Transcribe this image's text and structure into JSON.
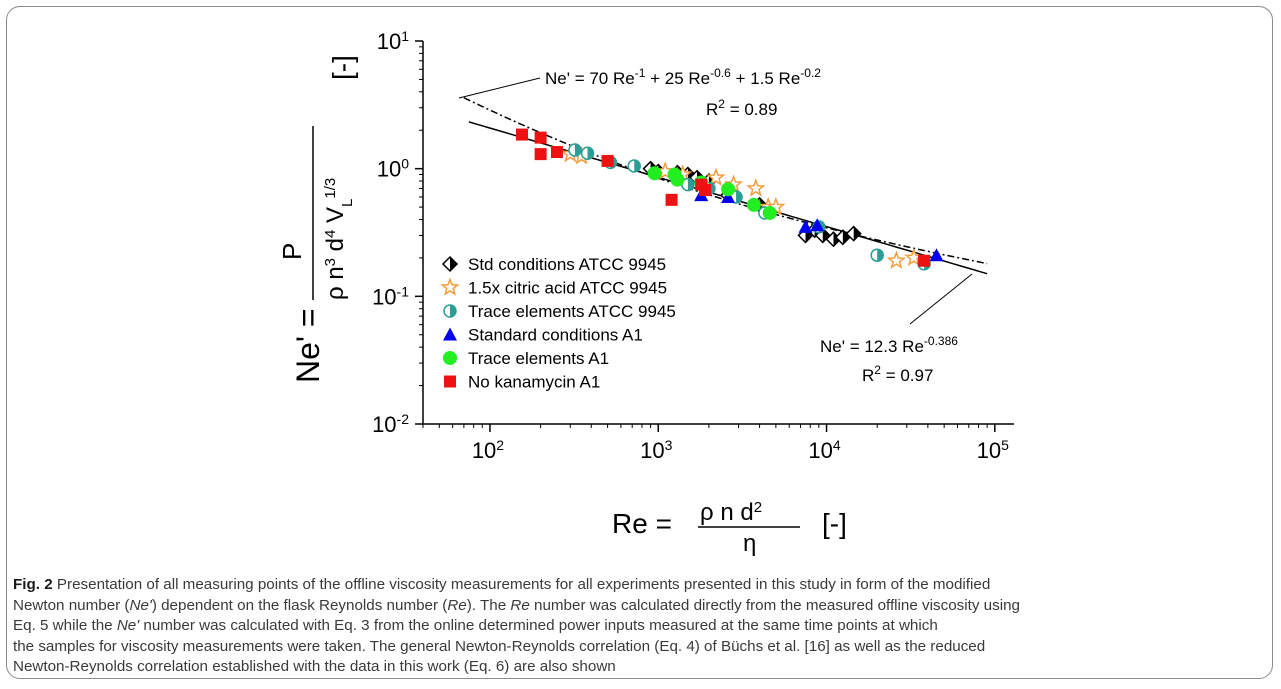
{
  "chart_data": {
    "type": "scatter",
    "x_scale": "log",
    "y_scale": "log",
    "xlim": [
      40,
      130000
    ],
    "ylim": [
      0.01,
      10
    ],
    "x_ticks": [
      {
        "base": "10",
        "exp": "2"
      },
      {
        "base": "10",
        "exp": "3"
      },
      {
        "base": "10",
        "exp": "4"
      },
      {
        "base": "10",
        "exp": "5"
      }
    ],
    "y_ticks": [
      {
        "base": "10",
        "exp": "-2"
      },
      {
        "base": "10",
        "exp": "-1"
      },
      {
        "base": "10",
        "exp": "0"
      },
      {
        "base": "10",
        "exp": "1"
      }
    ],
    "x_ticks_values": [
      100,
      1000,
      10000,
      100000
    ],
    "y_ticks_values": [
      0.01,
      0.1,
      1,
      10
    ],
    "xlabel": {
      "left": "Re =",
      "numerator": "ρ n d",
      "numerator_exp": "2",
      "denominator": "η",
      "unit": "[-]"
    },
    "ylabel": {
      "left": "Ne' =",
      "numerator": "P",
      "denominator": "ρ n",
      "d3": "3",
      "d": " d",
      "d4": "4",
      "v": " V",
      "vsub": "L",
      "vexp": "1/3",
      "unit": "[-]"
    },
    "series": [
      {
        "name": "Std conditions ATCC 9945",
        "marker": "half-diamond",
        "color": "#000000",
        "points": [
          [
            900,
            1.0
          ],
          [
            1000,
            0.95
          ],
          [
            1300,
            0.93
          ],
          [
            1500,
            0.9
          ],
          [
            1700,
            0.85
          ],
          [
            2000,
            0.8
          ],
          [
            2600,
            0.62
          ],
          [
            4000,
            0.52
          ],
          [
            7500,
            0.3
          ],
          [
            8500,
            0.33
          ],
          [
            9500,
            0.3
          ],
          [
            11000,
            0.28
          ],
          [
            12500,
            0.29
          ],
          [
            14500,
            0.31
          ]
        ]
      },
      {
        "name": "1.5x citric acid ATCC 9945",
        "marker": "star",
        "color": "#f39c3c",
        "points": [
          [
            300,
            1.3
          ],
          [
            350,
            1.25
          ],
          [
            1100,
            0.95
          ],
          [
            1400,
            0.9
          ],
          [
            2200,
            0.85
          ],
          [
            2800,
            0.75
          ],
          [
            3800,
            0.7
          ],
          [
            4500,
            0.5
          ],
          [
            5000,
            0.5
          ],
          [
            26000,
            0.19
          ],
          [
            33000,
            0.2
          ]
        ]
      },
      {
        "name": "Trace elements ATCC 9945",
        "marker": "half-circle",
        "color": "#2a9d95",
        "points": [
          [
            320,
            1.4
          ],
          [
            380,
            1.32
          ],
          [
            520,
            1.12
          ],
          [
            720,
            1.05
          ],
          [
            1500,
            0.75
          ],
          [
            2000,
            0.7
          ],
          [
            2900,
            0.6
          ],
          [
            4300,
            0.45
          ],
          [
            9000,
            0.35
          ],
          [
            20000,
            0.21
          ],
          [
            38000,
            0.18
          ]
        ]
      },
      {
        "name": "Standard conditions A1",
        "marker": "triangle",
        "color": "#0000ee",
        "points": [
          [
            1800,
            0.62
          ],
          [
            2600,
            0.6
          ],
          [
            7500,
            0.35
          ],
          [
            8800,
            0.36
          ],
          [
            45000,
            0.21
          ]
        ]
      },
      {
        "name": "Trace elements A1",
        "marker": "circle",
        "color": "#22ee22",
        "points": [
          [
            950,
            0.92
          ],
          [
            1250,
            0.9
          ],
          [
            1300,
            0.82
          ],
          [
            1800,
            0.78
          ],
          [
            2600,
            0.69
          ],
          [
            3700,
            0.52
          ],
          [
            4600,
            0.45
          ]
        ]
      },
      {
        "name": "No kanamycin A1",
        "marker": "square",
        "color": "#ee1111",
        "points": [
          [
            155,
            1.85
          ],
          [
            200,
            1.75
          ],
          [
            200,
            1.3
          ],
          [
            250,
            1.35
          ],
          [
            500,
            1.15
          ],
          [
            1200,
            0.57
          ],
          [
            1800,
            0.75
          ],
          [
            1900,
            0.68
          ],
          [
            38000,
            0.19
          ]
        ]
      }
    ],
    "fits": [
      {
        "label": "Ne' = 70 Re",
        "exp1": "-1",
        "part2": " + 25 Re",
        "exp2": "-0.6",
        "part3": " + 1.5 Re",
        "exp3": "-0.2",
        "r2_prefix": "R",
        "r2_exp": "2",
        "r2_value": " = 0.89",
        "style": "dash-dot",
        "coef": [
          70,
          -1,
          25,
          -0.6,
          1.5,
          -0.2
        ],
        "x_range": [
          70,
          90000
        ]
      },
      {
        "label": "Ne' = 12.3 Re",
        "exp1": "-0.386",
        "r2_prefix": "R",
        "r2_exp": "2",
        "r2_value": " = 0.97",
        "style": "solid",
        "coef": [
          12.3,
          -0.386
        ],
        "x_range": [
          75,
          90000
        ]
      }
    ],
    "legend_position": "bottom-left",
    "grid": false
  },
  "caption": {
    "fig_label": "Fig. 2",
    "line1": " Presentation of all measuring points of the offline viscosity measurements for all experiments presented in this study in form of the modified",
    "line2a": "Newton number (",
    "ne_italic": "Ne'",
    "line2b": ") dependent on the flask Reynolds number (",
    "re_italic": "Re",
    "line2c": "). The ",
    "re_italic2": "Re",
    "line2d": " number was calculated directly from the measured offline viscosity using",
    "line3a": "Eq. 5 while the ",
    "ne_italic2": "Ne'",
    "line3b": " number was calculated with Eq. 3 from the online determined power inputs measured at the same time points at which",
    "line4": "the samples for viscosity measurements were taken. The general Newton-Reynolds correlation (Eq. 4) of Büchs et al. [16] as well as the reduced",
    "line5": "Newton-Reynolds correlation established with the data in this work (Eq. 6) are also shown"
  }
}
